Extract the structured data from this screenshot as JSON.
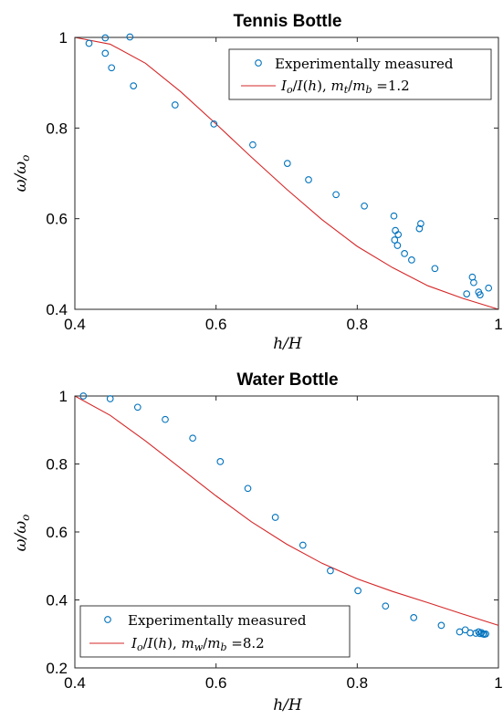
{
  "chart_data": [
    {
      "type": "scatter",
      "title": "Tennis Bottle",
      "xlabel": "h/H",
      "ylabel": "ω/ω_o",
      "xlim": [
        0.4,
        1.0
      ],
      "ylim": [
        0.4,
        1.0
      ],
      "xticks": [
        "0.4",
        "0.6",
        "0.8",
        "1"
      ],
      "yticks": [
        "0.4",
        "0.6",
        "0.8",
        "1"
      ],
      "legend_position": "top-right",
      "grid": false,
      "series": [
        {
          "name": "Experimentally measured",
          "kind": "markers",
          "color": "#0072bd",
          "x": [
            0.42,
            0.443,
            0.443,
            0.452,
            0.478,
            0.483,
            0.542,
            0.597,
            0.652,
            0.701,
            0.731,
            0.77,
            0.81,
            0.852,
            0.853,
            0.854,
            0.857,
            0.858,
            0.867,
            0.877,
            0.888,
            0.89,
            0.91,
            0.955,
            0.963,
            0.965,
            0.972,
            0.974,
            0.986
          ],
          "y": [
            0.987,
            0.999,
            0.965,
            0.933,
            1.001,
            0.893,
            0.851,
            0.809,
            0.763,
            0.722,
            0.686,
            0.653,
            0.628,
            0.606,
            0.553,
            0.574,
            0.541,
            0.565,
            0.523,
            0.509,
            0.578,
            0.589,
            0.49,
            0.434,
            0.471,
            0.459,
            0.438,
            0.432,
            0.447
          ]
        },
        {
          "name": "I_o/I(h),  m_t/m_b =1.2",
          "kind": "line",
          "color": "#d62728",
          "x": [
            0.4,
            0.45,
            0.5,
            0.55,
            0.6,
            0.65,
            0.7,
            0.75,
            0.8,
            0.85,
            0.9,
            0.95,
            1.0
          ],
          "y": [
            1.0,
            0.985,
            0.943,
            0.88,
            0.809,
            0.736,
            0.665,
            0.598,
            0.539,
            0.492,
            0.452,
            0.424,
            0.4
          ]
        }
      ]
    },
    {
      "type": "scatter",
      "title": "Water Bottle",
      "xlabel": "h/H",
      "ylabel": "ω/ω_o",
      "xlim": [
        0.4,
        1.0
      ],
      "ylim": [
        0.2,
        1.0
      ],
      "xticks": [
        "0.4",
        "0.6",
        "0.8",
        "1"
      ],
      "yticks": [
        "0.2",
        "0.4",
        "0.6",
        "0.8",
        "1"
      ],
      "legend_position": "bottom-left",
      "grid": false,
      "series": [
        {
          "name": "Experimentally measured",
          "kind": "markers",
          "color": "#0072bd",
          "x": [
            0.412,
            0.45,
            0.489,
            0.528,
            0.567,
            0.606,
            0.645,
            0.684,
            0.723,
            0.762,
            0.801,
            0.84,
            0.88,
            0.919,
            0.945,
            0.953,
            0.96,
            0.968,
            0.972,
            0.974,
            0.976,
            0.978,
            0.98,
            0.982
          ],
          "y": [
            1.0,
            0.992,
            0.967,
            0.931,
            0.876,
            0.807,
            0.728,
            0.643,
            0.561,
            0.486,
            0.427,
            0.382,
            0.348,
            0.325,
            0.306,
            0.312,
            0.303,
            0.302,
            0.306,
            0.301,
            0.304,
            0.3,
            0.299,
            0.3
          ]
        },
        {
          "name": "I_o/I(h),  m_w/m_b =8.2",
          "kind": "line",
          "color": "#d62728",
          "x": [
            0.4,
            0.45,
            0.5,
            0.55,
            0.6,
            0.65,
            0.7,
            0.75,
            0.8,
            0.85,
            0.9,
            0.95,
            1.0
          ],
          "y": [
            1.0,
            0.943,
            0.868,
            0.787,
            0.706,
            0.63,
            0.564,
            0.508,
            0.462,
            0.425,
            0.392,
            0.358,
            0.325
          ]
        }
      ]
    }
  ]
}
